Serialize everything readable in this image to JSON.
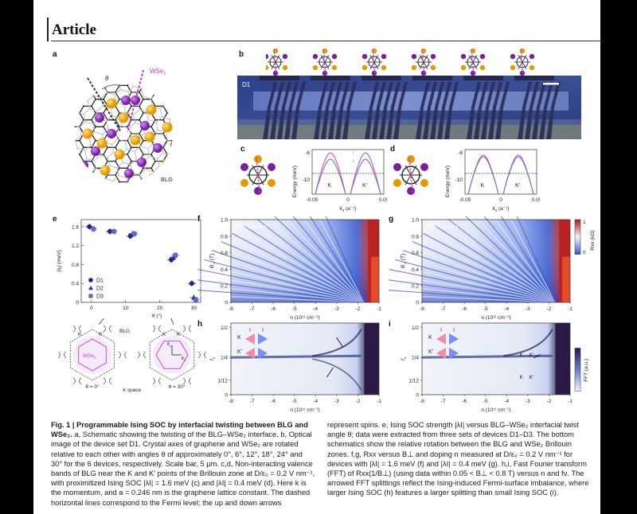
{
  "header": {
    "title": "Article"
  },
  "panels": {
    "a": "a",
    "b": "b",
    "c": "c",
    "d": "d",
    "e": "e",
    "f": "f",
    "g": "g",
    "h": "h",
    "i": "i"
  },
  "panel_a": {
    "theta": "θ",
    "wse2": "WSe",
    "wse2_sub": "2",
    "blg": "BLG"
  },
  "panel_b": {
    "device": "D1"
  },
  "panel_cd": {
    "ylabel": "Energy (meV)",
    "yticks": [
      "-6",
      "-10"
    ],
    "xticks": [
      "-0.05",
      "0",
      "0.05"
    ],
    "valley_k": "K",
    "valley_kp": "K'",
    "xlabel": "k",
    "xlabel_sub": "x",
    "xlabel_unit": "(a⁻¹)",
    "up": "↑",
    "down": "↓"
  },
  "panel_e": {
    "ylabel": "|λ",
    "ylabel_sub": "I",
    "ylabel_unit": "| (meV)",
    "xlabel": "θ (°)",
    "yticks": [
      "1.6",
      "1.2",
      "0.8",
      "0.4",
      "0"
    ],
    "xticks": [
      "0",
      "10",
      "20",
      "30"
    ],
    "legend": [
      "D1",
      "D2",
      "D3"
    ],
    "legend_colors": [
      "#1a237e",
      "#283593",
      "#5c6bc0"
    ],
    "bz": {
      "k": "K",
      "kp": "K'",
      "blg": "BLG",
      "wse2": "WSe",
      "wse2_sub": "2",
      "kx": "k",
      "kx_sub": "x",
      "ky": "k",
      "ky_sub": "y",
      "theta0": "θ = 0°",
      "theta30": "θ = 30°",
      "kspace": "k space"
    }
  },
  "chart_data": [
    {
      "type": "scatter",
      "panel": "e",
      "xlabel": "θ (°)",
      "ylabel": "|λI| (meV)",
      "xlim": [
        -3,
        32
      ],
      "ylim": [
        0,
        1.75
      ],
      "series": [
        {
          "name": "D1",
          "marker": "circle",
          "x": [
            0,
            6,
            12,
            24,
            30
          ],
          "y": [
            1.6,
            1.5,
            1.4,
            0.9,
            0.4
          ]
        },
        {
          "name": "D2",
          "marker": "triangle",
          "x": [
            12,
            24,
            30
          ],
          "y": [
            1.45,
            0.95,
            0.1
          ]
        },
        {
          "name": "D3",
          "marker": "square",
          "x": [
            0,
            6,
            12,
            24,
            30
          ],
          "y": [
            1.55,
            1.5,
            1.45,
            1.0,
            0.05
          ]
        }
      ]
    },
    {
      "type": "heatmap",
      "panel": "f",
      "xlabel": "n (10¹¹ cm⁻²)",
      "ylabel": "B⊥ (T)",
      "xlim": [
        -8,
        -1
      ],
      "ylim": [
        0,
        1.0
      ],
      "annotation": "|λI| = 1.6 meV"
    },
    {
      "type": "heatmap",
      "panel": "g",
      "xlabel": "n (10¹¹ cm⁻²)",
      "ylabel": "B⊥ (T)",
      "xlim": [
        -8,
        -1
      ],
      "ylim": [
        0,
        1.0
      ],
      "annotation": "|λI| = 0.4 meV",
      "colorbar": {
        "label": "Rxx (kΩ)",
        "ticks": [
          "1",
          "0"
        ]
      }
    },
    {
      "type": "heatmap",
      "panel": "h",
      "xlabel": "n (10¹¹ cm⁻²)",
      "ylabel": "fν",
      "xlim": [
        -8,
        -1
      ],
      "ytick_labels": [
        "1/2",
        "1/4",
        "1/12",
        "0"
      ]
    },
    {
      "type": "heatmap",
      "panel": "i",
      "xlabel": "n (10¹¹ cm⁻²)",
      "ylabel": "fν",
      "xlim": [
        -8,
        -1
      ],
      "ytick_labels": [
        "1/2",
        "1/4",
        "1/12",
        "0"
      ],
      "colorbar": {
        "label": "FFT (a.u.)"
      }
    }
  ],
  "panel_fg": {
    "yticks": [
      "1.0",
      "0.8",
      "0.6",
      "0.4",
      "0.2",
      "0"
    ],
    "xticks": [
      "-8",
      "-7",
      "-6",
      "-5",
      "-4",
      "-3",
      "-2",
      "-1"
    ],
    "xlabel": "n (10¹¹ cm⁻²)",
    "ylabel": "B",
    "ylabel_sub": "⊥",
    "ylabel_unit": " (T)",
    "f_annot": "|λI| = 1.6 meV",
    "g_annot": "|λI| = 0.4 meV",
    "cbar_label": "Rxx (kΩ)",
    "cbar_ticks": [
      "1",
      "0"
    ]
  },
  "panel_hi": {
    "yticks": [
      "1/2",
      "1/4",
      "1/12",
      "0"
    ],
    "ylabel": "f",
    "ylabel_sub": "ν",
    "k": "K",
    "kp": "K'",
    "cbar_label": "FFT (a.u.)"
  },
  "caption": {
    "title": "Fig. 1 | Programmable Ising SOC by interfacial twisting between BLG and WSe₂.",
    "left": "a, Schematic showing the twisting of the BLG–WSe₂ interface. b, Optical image of the device set D1. Crystal axes of graphene and WSe₂ are rotated relative to each other with angles θ of approximately 0°, 6°, 12°, 18°, 24° and 30° for the 6 devices, respectively. Scale bar, 5 µm. c,d, Non-interacting valence bands of BLG near the K and K' points of the Brillouin zone at D/ε₀ = 0.2 V nm⁻¹, with proximitized Ising SOC |λI| = 1.6 meV (c) and |λI| = 0.4 meV (d). Here k is the momentum, and a = 0.246 nm is the graphene lattice constant. The dashed horizontal lines correspond to the Fermi level; the up and down arrows",
    "right": "represent spins. e, Ising SOC strength |λI| versus BLG–WSe₂ interfacial twist angle θ; data were extracted from three sets of devices D1–D3. The bottom schematics show the relative rotation between the BLG and WSe₂ Brillouin zones. f,g, Rxx versus B⊥ and doping n measured at D/ε₀ = 0.2 V nm⁻¹ for devices with |λI| = 1.6 meV (f) and |λI| = 0.4 meV (g). h,i, Fast Fourier transform (FFT) of Rxx(1/B⊥) (using data within 0.05 < B⊥ < 0.8 T) versus n and fν. The arrowed FFT splittings reflect the Ising-induced Fermi-surface imbalance, where larger Ising SOC (h) features a larger splitting than small Ising SOC (i)."
  }
}
